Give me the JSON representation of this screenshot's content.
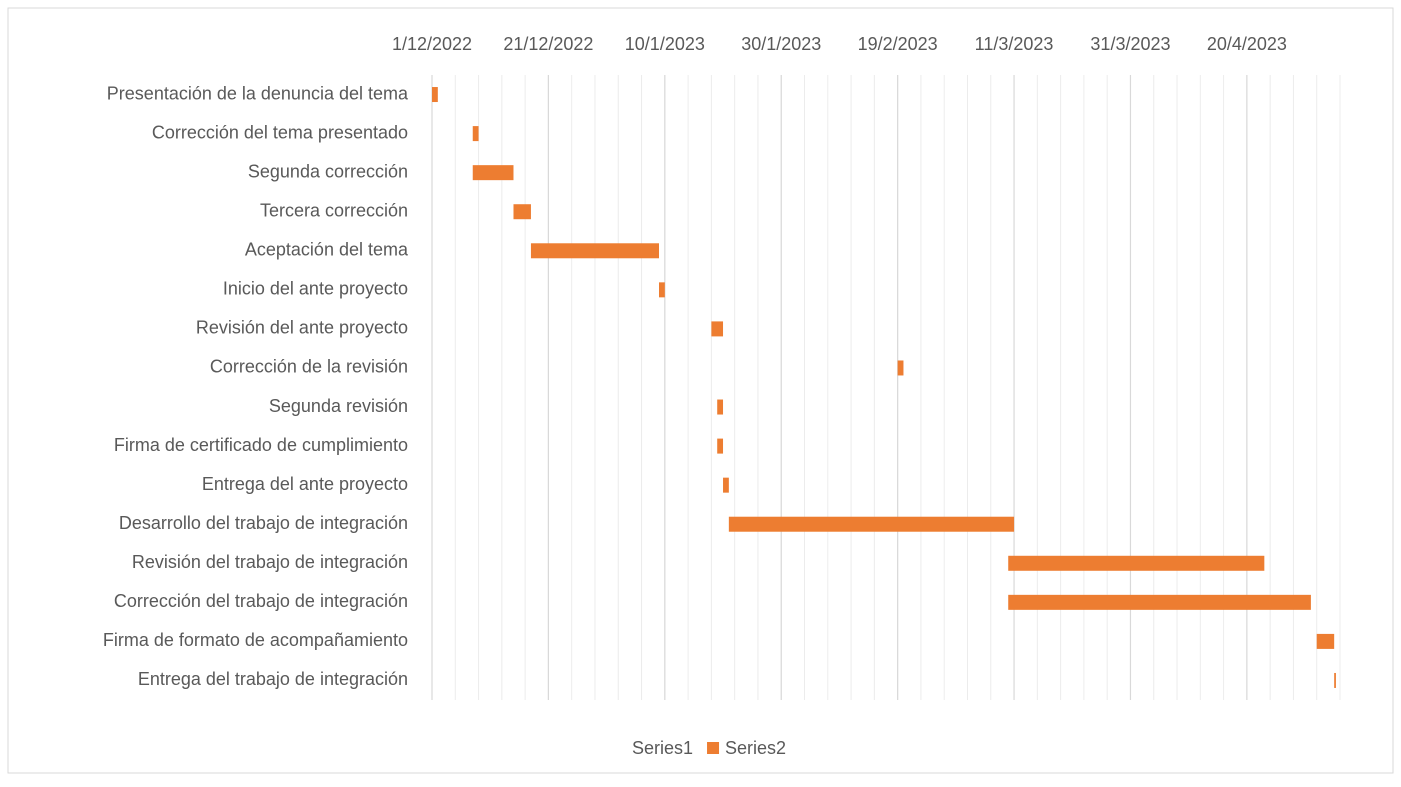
{
  "chart_data": {
    "type": "gantt",
    "categories": [
      "Presentación de la denuncia del tema",
      "Corrección del tema presentado",
      "Segunda corrección",
      "Tercera corrección",
      "Aceptación del tema",
      "Inicio del ante proyecto",
      "Revisión del ante proyecto",
      "Corrección de la revisión",
      "Segunda revisión",
      "Firma de certificado de cumplimiento",
      "Entrega del ante proyecto",
      "Desarrollo del trabajo de integración",
      "Revisión del trabajo de integración",
      "Corrección del trabajo de integración",
      "Firma de formato de acompañamiento",
      "Entrega del trabajo de integración"
    ],
    "series": [
      {
        "name": "Series1",
        "color": "none",
        "values": [
          44896,
          44903,
          44903,
          44910,
          44913,
          44935,
          44944,
          44976,
          44945,
          44945,
          44946,
          44947,
          44995,
          44995,
          45048,
          45051
        ]
      },
      {
        "name": "Series2",
        "color": "#ed7d31",
        "values": [
          1,
          1,
          7,
          3,
          22,
          1,
          2,
          1,
          1,
          1,
          1,
          49,
          44,
          52,
          3,
          0.3
        ]
      }
    ],
    "xlim": [
      44896,
      45052
    ],
    "xticks": [
      {
        "value": 44896,
        "label": "1/12/2022"
      },
      {
        "value": 44916,
        "label": "21/12/2022"
      },
      {
        "value": 44936,
        "label": "10/1/2023"
      },
      {
        "value": 44956,
        "label": "30/1/2023"
      },
      {
        "value": 44976,
        "label": "19/2/2023"
      },
      {
        "value": 44996,
        "label": "11/3/2023"
      },
      {
        "value": 45016,
        "label": "31/3/2023"
      },
      {
        "value": 45036,
        "label": "20/4/2023"
      }
    ],
    "grid": true,
    "minor_grid_step": 4,
    "legend": "bottom"
  }
}
